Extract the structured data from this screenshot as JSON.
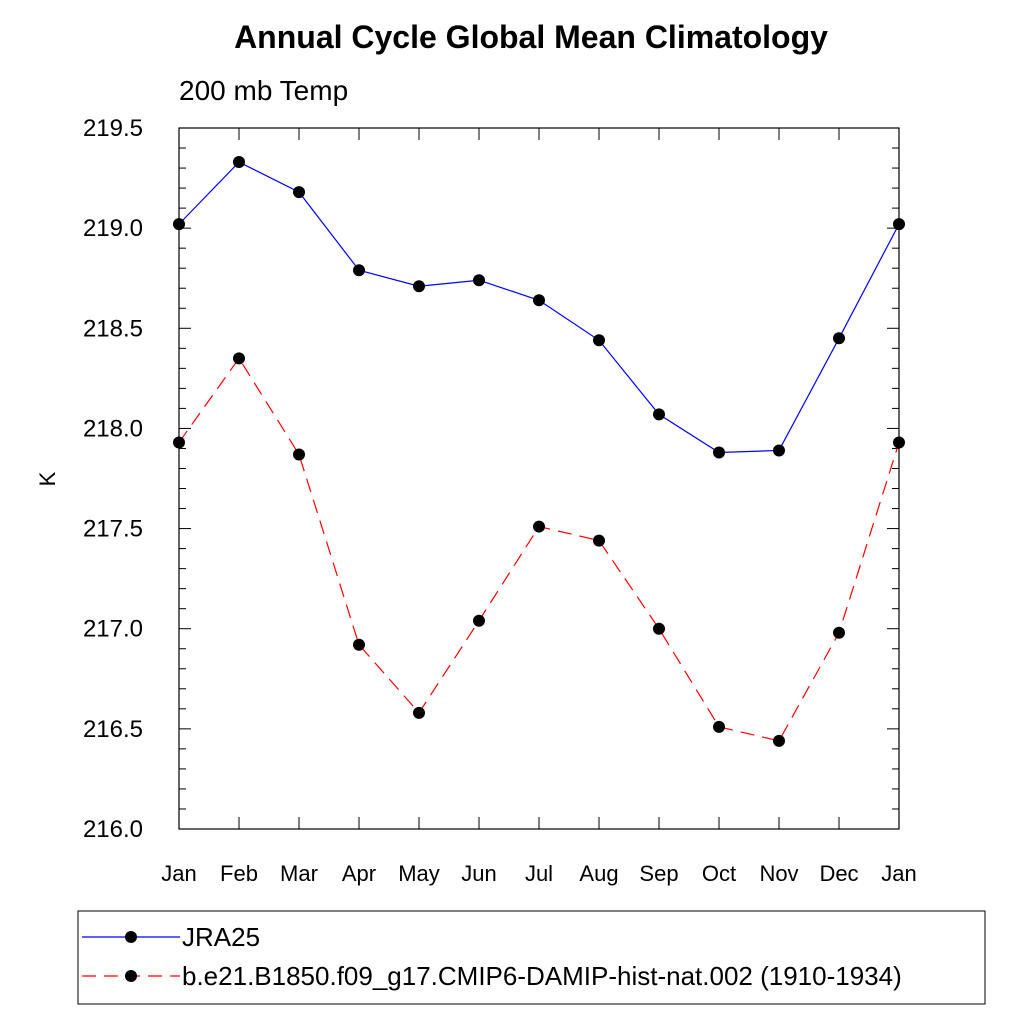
{
  "chart_data": {
    "type": "line",
    "title": "Annual Cycle Global Mean Climatology",
    "subtitle": "200 mb Temp",
    "xlabel": "",
    "ylabel": "K",
    "categories": [
      "Jan",
      "Feb",
      "Mar",
      "Apr",
      "May",
      "Jun",
      "Jul",
      "Aug",
      "Sep",
      "Oct",
      "Nov",
      "Dec",
      "Jan"
    ],
    "ylim": [
      216.0,
      219.5
    ],
    "yticks": [
      "216.0",
      "216.5",
      "217.0",
      "217.5",
      "218.0",
      "218.5",
      "219.0",
      "219.5"
    ],
    "grid": false,
    "legend_position": "bottom",
    "series": [
      {
        "name": "JRA25",
        "color": "#0000ff",
        "line_style": "solid",
        "marker": "filled-circle",
        "values": [
          219.02,
          219.33,
          219.18,
          218.79,
          218.71,
          218.74,
          218.64,
          218.44,
          218.07,
          217.88,
          217.89,
          218.45,
          219.02
        ]
      },
      {
        "name": "b.e21.B1850.f09_g17.CMIP6-DAMIP-hist-nat.002 (1910-1934)",
        "color": "#ff0000",
        "line_style": "dashed",
        "marker": "filled-circle",
        "values": [
          217.93,
          218.35,
          217.87,
          216.92,
          216.58,
          217.04,
          217.51,
          217.44,
          217.0,
          216.51,
          216.44,
          216.98,
          217.93
        ]
      }
    ]
  }
}
